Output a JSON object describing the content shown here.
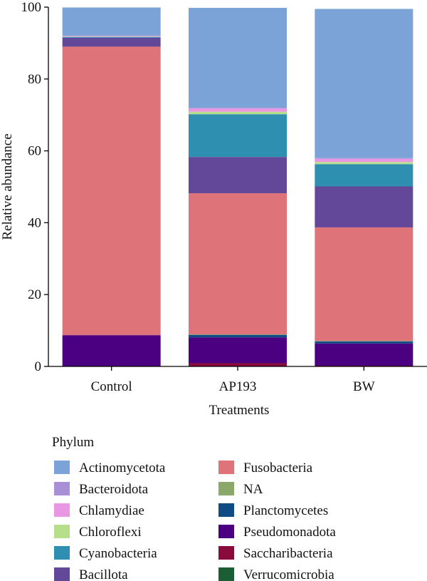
{
  "chart_data": {
    "type": "bar",
    "stacked": true,
    "xlabel": "Treatments",
    "ylabel": "Relative abundance",
    "ylim": [
      0,
      100
    ],
    "yticks": [
      0,
      20,
      40,
      60,
      80,
      100
    ],
    "categories": [
      "Control",
      "AP193",
      "BW"
    ],
    "stack_order": [
      "Saccharibacteria",
      "Pseudomonadota",
      "Planctomycetes",
      "Verrucomicrobia",
      "NA",
      "Fusobacteria",
      "Bacillota",
      "Cyanobacteria",
      "Chloroflexi",
      "Chlamydiae",
      "Bacteroidota",
      "Actinomycetota"
    ],
    "series": [
      {
        "name": "Actinomycetota",
        "color": "#7ba3d8",
        "values": [
          7.8,
          27.8,
          41.5
        ]
      },
      {
        "name": "Bacteroidota",
        "color": "#a98fd6",
        "values": [
          0.2,
          0.2,
          0.2
        ]
      },
      {
        "name": "Chlamydiae",
        "color": "#e997e3",
        "values": [
          0.1,
          0.9,
          0.9
        ]
      },
      {
        "name": "Chloroflexi",
        "color": "#b7de8a",
        "values": [
          0.1,
          0.7,
          0.6
        ]
      },
      {
        "name": "Cyanobacteria",
        "color": "#2e8fb0",
        "values": [
          0.2,
          11.9,
          6.2
        ]
      },
      {
        "name": "Bacillota",
        "color": "#63489a",
        "values": [
          2.5,
          10.1,
          11.4
        ]
      },
      {
        "name": "Fusobacteria",
        "color": "#de7479",
        "values": [
          80.3,
          39.3,
          31.6
        ]
      },
      {
        "name": "NA",
        "color": "#8aa86a",
        "values": [
          0.0,
          0.1,
          0.1
        ]
      },
      {
        "name": "Planctomycetes",
        "color": "#104c84",
        "values": [
          0.0,
          0.7,
          0.6
        ]
      },
      {
        "name": "Pseudomonadota",
        "color": "#4a0080",
        "values": [
          8.7,
          7.2,
          6.2
        ]
      },
      {
        "name": "Saccharibacteria",
        "color": "#8a0a3c",
        "values": [
          0.0,
          0.9,
          0.2
        ]
      },
      {
        "name": "Verrucomicrobia",
        "color": "#1b5e35",
        "values": [
          0.0,
          0.0,
          0.0
        ]
      }
    ],
    "legend": {
      "title": "Phylum",
      "placement": "bottom",
      "columns": [
        [
          "Actinomycetota",
          "Bacteroidota",
          "Chlamydiae",
          "Chloroflexi",
          "Cyanobacteria",
          "Bacillota"
        ],
        [
          "Fusobacteria",
          "NA",
          "Planctomycetes",
          "Pseudomonadota",
          "Saccharibacteria",
          "Verrucomicrobia"
        ]
      ]
    },
    "grid": false
  }
}
